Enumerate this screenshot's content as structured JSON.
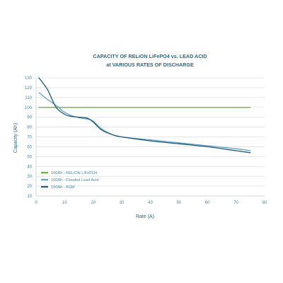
{
  "chart_data": {
    "type": "line",
    "title_line1": "CAPACITY OF RELiON LiFePO4 vs. LEAD ACID",
    "title_line2": "at VARIOUS RATES OF DISCHARGE",
    "xlabel": "Rate (A)",
    "ylabel": "Capacity (Ah)",
    "xlim": [
      0,
      80
    ],
    "ylim": [
      10,
      130
    ],
    "xticks": [
      "0",
      "10",
      "20",
      "30",
      "40",
      "50",
      "60",
      "70",
      "80"
    ],
    "xtick_values": [
      0,
      10,
      20,
      30,
      40,
      50,
      60,
      70,
      80
    ],
    "yticks": [
      "10",
      "20",
      "30",
      "40",
      "50",
      "60",
      "70",
      "80",
      "90",
      "100",
      "110",
      "120",
      "130"
    ],
    "ytick_values": [
      10,
      20,
      30,
      40,
      50,
      60,
      70,
      80,
      90,
      100,
      110,
      120,
      130
    ],
    "grid": true,
    "legend_position": "bottom-left",
    "series": [
      {
        "name": "100Ah - RELiON LiFePO4",
        "color": "#6db33f",
        "x": [
          1,
          75
        ],
        "y": [
          100,
          100
        ]
      },
      {
        "name": "100Ah - Flooded Lead Acid",
        "color": "#5fa4c4",
        "x": [
          1,
          4,
          7,
          10,
          13,
          16,
          18,
          20,
          23,
          27,
          30,
          40,
          50,
          60,
          70,
          75
        ],
        "y": [
          115,
          108,
          102,
          95,
          91,
          89,
          88,
          86,
          78,
          72,
          70,
          67,
          64,
          61,
          58,
          56
        ]
      },
      {
        "name": "100Ah - AGM",
        "color": "#1c5a78",
        "x": [
          1,
          4,
          7,
          10,
          12,
          15,
          18,
          20,
          23,
          27,
          30,
          40,
          50,
          60,
          70,
          75
        ],
        "y": [
          130,
          118,
          100,
          93,
          91,
          90,
          89,
          85,
          77,
          72,
          70,
          66,
          63,
          60,
          56,
          54
        ]
      }
    ]
  }
}
